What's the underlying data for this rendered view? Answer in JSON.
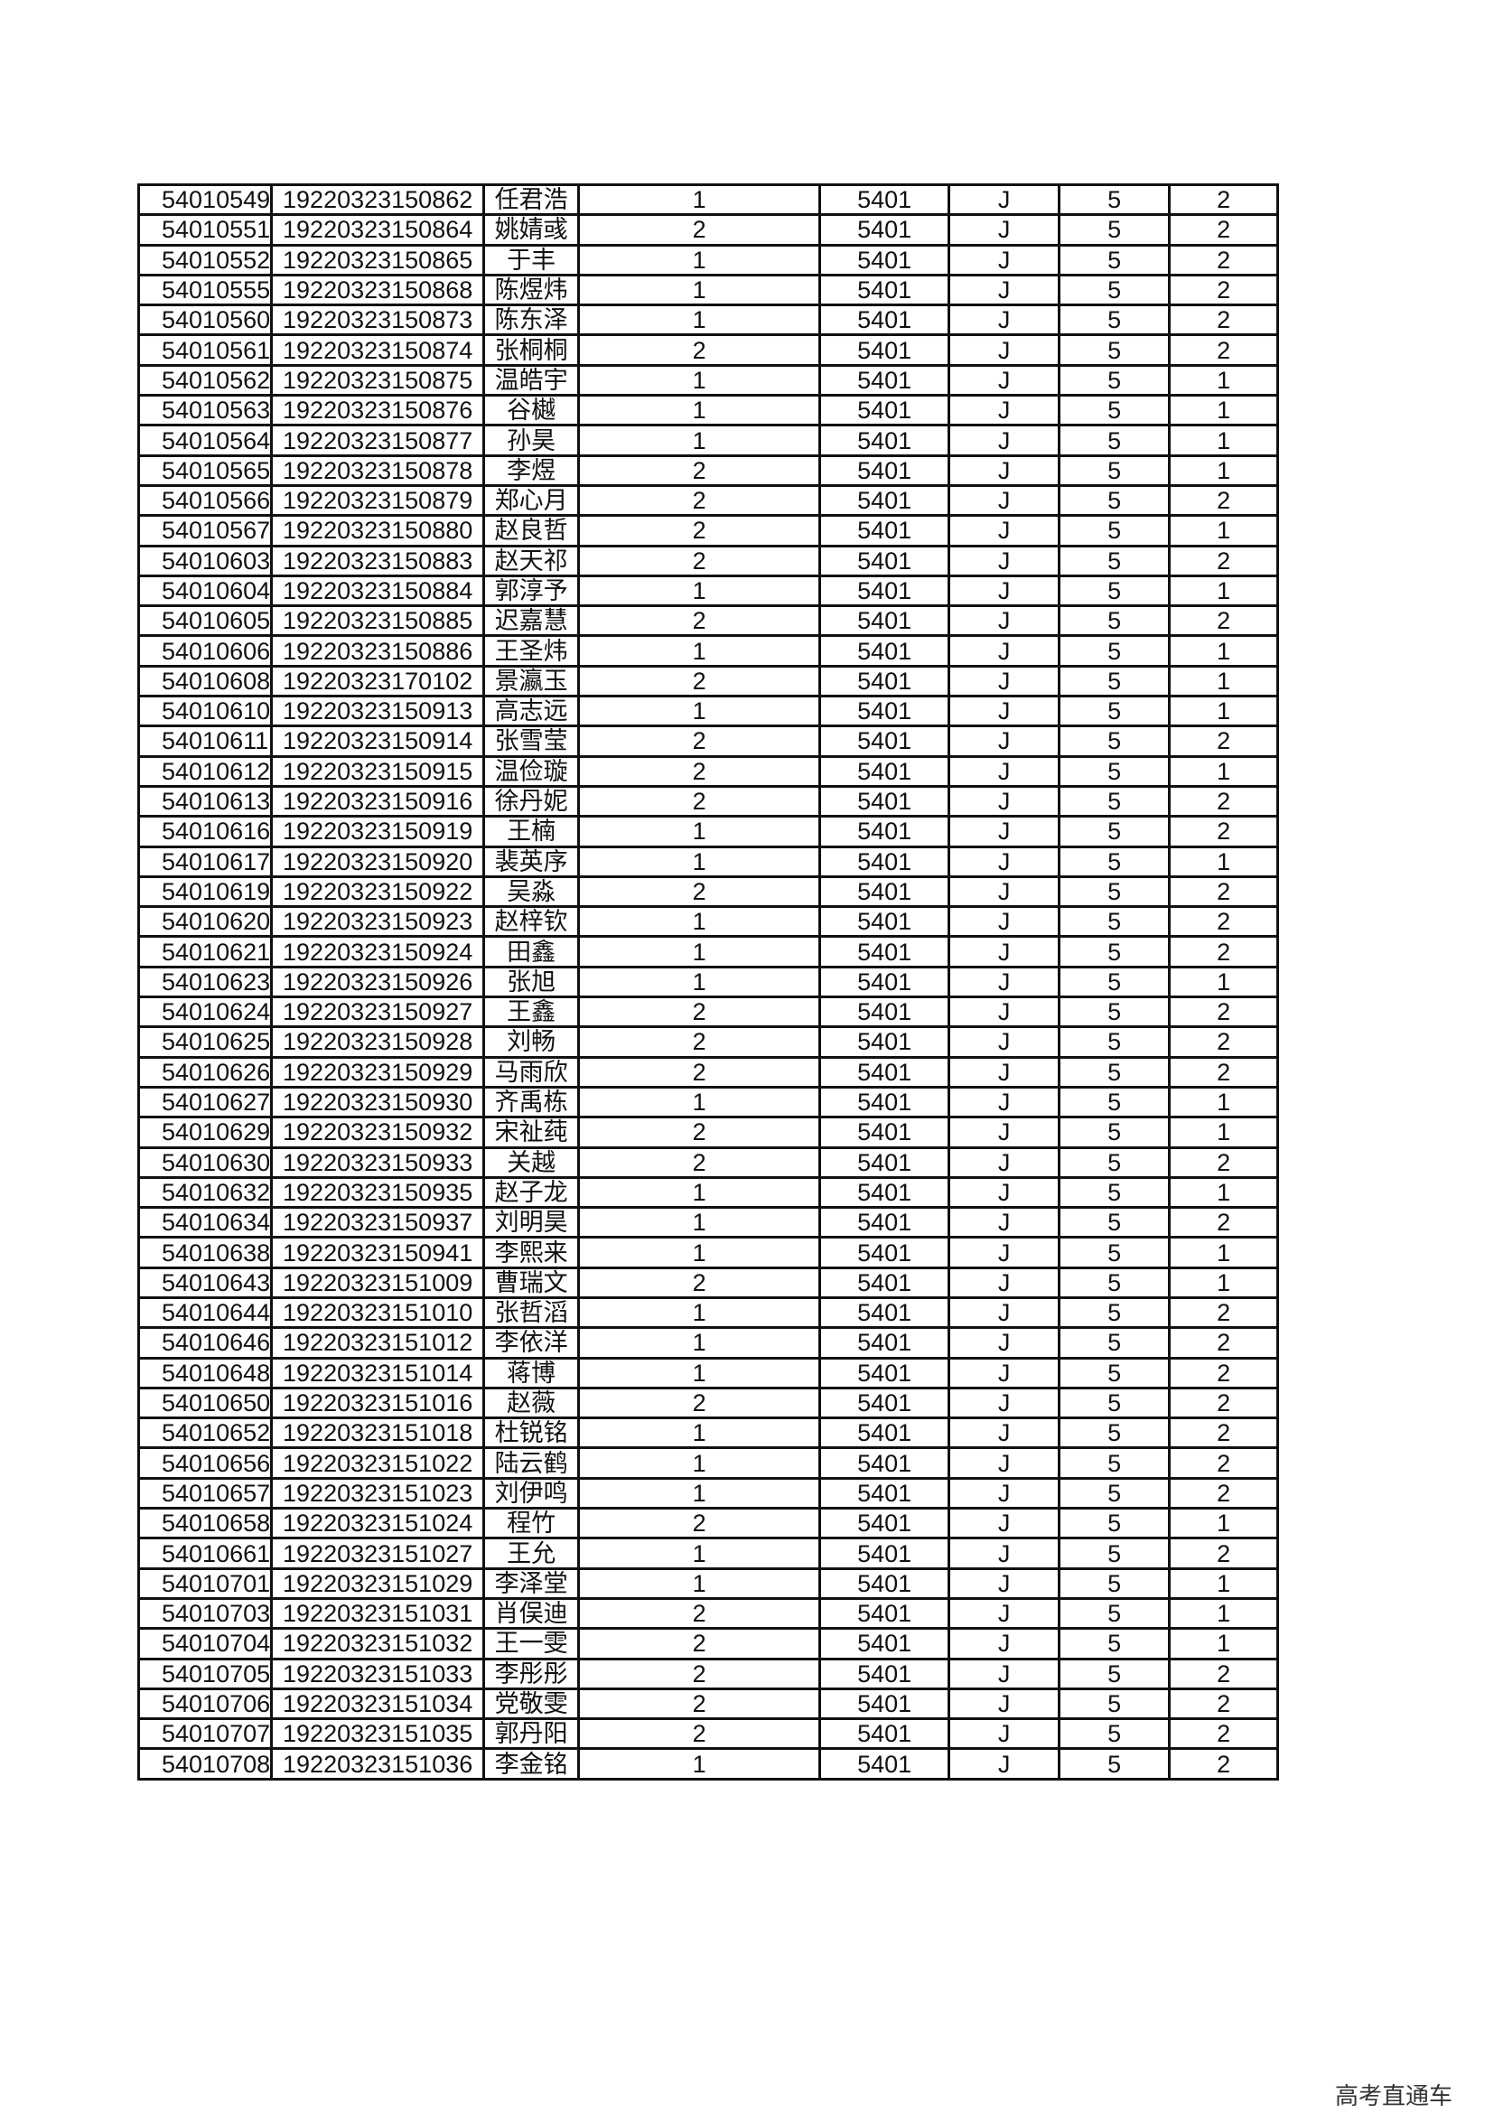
{
  "rows": [
    [
      "54010549",
      "19220323150862",
      "任君浩",
      "1",
      "5401",
      "J",
      "5",
      "2"
    ],
    [
      "54010551",
      "19220323150864",
      "姚婧彧",
      "2",
      "5401",
      "J",
      "5",
      "2"
    ],
    [
      "54010552",
      "19220323150865",
      "于丰",
      "1",
      "5401",
      "J",
      "5",
      "2"
    ],
    [
      "54010555",
      "19220323150868",
      "陈煜炜",
      "1",
      "5401",
      "J",
      "5",
      "2"
    ],
    [
      "54010560",
      "19220323150873",
      "陈东泽",
      "1",
      "5401",
      "J",
      "5",
      "2"
    ],
    [
      "54010561",
      "19220323150874",
      "张桐桐",
      "2",
      "5401",
      "J",
      "5",
      "2"
    ],
    [
      "54010562",
      "19220323150875",
      "温皓宇",
      "1",
      "5401",
      "J",
      "5",
      "1"
    ],
    [
      "54010563",
      "19220323150876",
      "谷樾",
      "1",
      "5401",
      "J",
      "5",
      "1"
    ],
    [
      "54010564",
      "19220323150877",
      "孙昊",
      "1",
      "5401",
      "J",
      "5",
      "1"
    ],
    [
      "54010565",
      "19220323150878",
      "李煜",
      "2",
      "5401",
      "J",
      "5",
      "1"
    ],
    [
      "54010566",
      "19220323150879",
      "郑心月",
      "2",
      "5401",
      "J",
      "5",
      "2"
    ],
    [
      "54010567",
      "19220323150880",
      "赵良哲",
      "2",
      "5401",
      "J",
      "5",
      "1"
    ],
    [
      "54010603",
      "19220323150883",
      "赵天祁",
      "2",
      "5401",
      "J",
      "5",
      "2"
    ],
    [
      "54010604",
      "19220323150884",
      "郭淳予",
      "1",
      "5401",
      "J",
      "5",
      "1"
    ],
    [
      "54010605",
      "19220323150885",
      "迟嘉慧",
      "2",
      "5401",
      "J",
      "5",
      "2"
    ],
    [
      "54010606",
      "19220323150886",
      "王圣炜",
      "1",
      "5401",
      "J",
      "5",
      "1"
    ],
    [
      "54010608",
      "19220323170102",
      "景瀛玉",
      "2",
      "5401",
      "J",
      "5",
      "1"
    ],
    [
      "54010610",
      "19220323150913",
      "高志远",
      "1",
      "5401",
      "J",
      "5",
      "1"
    ],
    [
      "54010611",
      "19220323150914",
      "张雪莹",
      "2",
      "5401",
      "J",
      "5",
      "2"
    ],
    [
      "54010612",
      "19220323150915",
      "温俭璇",
      "2",
      "5401",
      "J",
      "5",
      "1"
    ],
    [
      "54010613",
      "19220323150916",
      "徐丹妮",
      "2",
      "5401",
      "J",
      "5",
      "2"
    ],
    [
      "54010616",
      "19220323150919",
      "王楠",
      "1",
      "5401",
      "J",
      "5",
      "2"
    ],
    [
      "54010617",
      "19220323150920",
      "裴英序",
      "1",
      "5401",
      "J",
      "5",
      "1"
    ],
    [
      "54010619",
      "19220323150922",
      "吴淼",
      "2",
      "5401",
      "J",
      "5",
      "2"
    ],
    [
      "54010620",
      "19220323150923",
      "赵梓钦",
      "1",
      "5401",
      "J",
      "5",
      "2"
    ],
    [
      "54010621",
      "19220323150924",
      "田鑫",
      "1",
      "5401",
      "J",
      "5",
      "2"
    ],
    [
      "54010623",
      "19220323150926",
      "张旭",
      "1",
      "5401",
      "J",
      "5",
      "1"
    ],
    [
      "54010624",
      "19220323150927",
      "王鑫",
      "2",
      "5401",
      "J",
      "5",
      "2"
    ],
    [
      "54010625",
      "19220323150928",
      "刘畅",
      "2",
      "5401",
      "J",
      "5",
      "2"
    ],
    [
      "54010626",
      "19220323150929",
      "马雨欣",
      "2",
      "5401",
      "J",
      "5",
      "2"
    ],
    [
      "54010627",
      "19220323150930",
      "齐禹栋",
      "1",
      "5401",
      "J",
      "5",
      "1"
    ],
    [
      "54010629",
      "19220323150932",
      "宋祉莼",
      "2",
      "5401",
      "J",
      "5",
      "1"
    ],
    [
      "54010630",
      "19220323150933",
      "关越",
      "2",
      "5401",
      "J",
      "5",
      "2"
    ],
    [
      "54010632",
      "19220323150935",
      "赵子龙",
      "1",
      "5401",
      "J",
      "5",
      "1"
    ],
    [
      "54010634",
      "19220323150937",
      "刘明昊",
      "1",
      "5401",
      "J",
      "5",
      "2"
    ],
    [
      "54010638",
      "19220323150941",
      "李熙来",
      "1",
      "5401",
      "J",
      "5",
      "1"
    ],
    [
      "54010643",
      "19220323151009",
      "曹瑞文",
      "2",
      "5401",
      "J",
      "5",
      "1"
    ],
    [
      "54010644",
      "19220323151010",
      "张哲滔",
      "1",
      "5401",
      "J",
      "5",
      "2"
    ],
    [
      "54010646",
      "19220323151012",
      "李依洋",
      "1",
      "5401",
      "J",
      "5",
      "2"
    ],
    [
      "54010648",
      "19220323151014",
      "蒋博",
      "1",
      "5401",
      "J",
      "5",
      "2"
    ],
    [
      "54010650",
      "19220323151016",
      "赵薇",
      "2",
      "5401",
      "J",
      "5",
      "2"
    ],
    [
      "54010652",
      "19220323151018",
      "杜锐铭",
      "1",
      "5401",
      "J",
      "5",
      "2"
    ],
    [
      "54010656",
      "19220323151022",
      "陆云鹤",
      "1",
      "5401",
      "J",
      "5",
      "2"
    ],
    [
      "54010657",
      "19220323151023",
      "刘伊鸣",
      "1",
      "5401",
      "J",
      "5",
      "2"
    ],
    [
      "54010658",
      "19220323151024",
      "程竹",
      "2",
      "5401",
      "J",
      "5",
      "1"
    ],
    [
      "54010661",
      "19220323151027",
      "王允",
      "1",
      "5401",
      "J",
      "5",
      "2"
    ],
    [
      "54010701",
      "19220323151029",
      "李泽堂",
      "1",
      "5401",
      "J",
      "5",
      "1"
    ],
    [
      "54010703",
      "19220323151031",
      "肖俣迪",
      "2",
      "5401",
      "J",
      "5",
      "1"
    ],
    [
      "54010704",
      "19220323151032",
      "王一雯",
      "2",
      "5401",
      "J",
      "5",
      "1"
    ],
    [
      "54010705",
      "19220323151033",
      "李彤彤",
      "2",
      "5401",
      "J",
      "5",
      "2"
    ],
    [
      "54010706",
      "19220323151034",
      "党敬雯",
      "2",
      "5401",
      "J",
      "5",
      "2"
    ],
    [
      "54010707",
      "19220323151035",
      "郭丹阳",
      "2",
      "5401",
      "J",
      "5",
      "2"
    ],
    [
      "54010708",
      "19220323151036",
      "李金铭",
      "1",
      "5401",
      "J",
      "5",
      "2"
    ]
  ],
  "watermark": "高考直通车"
}
